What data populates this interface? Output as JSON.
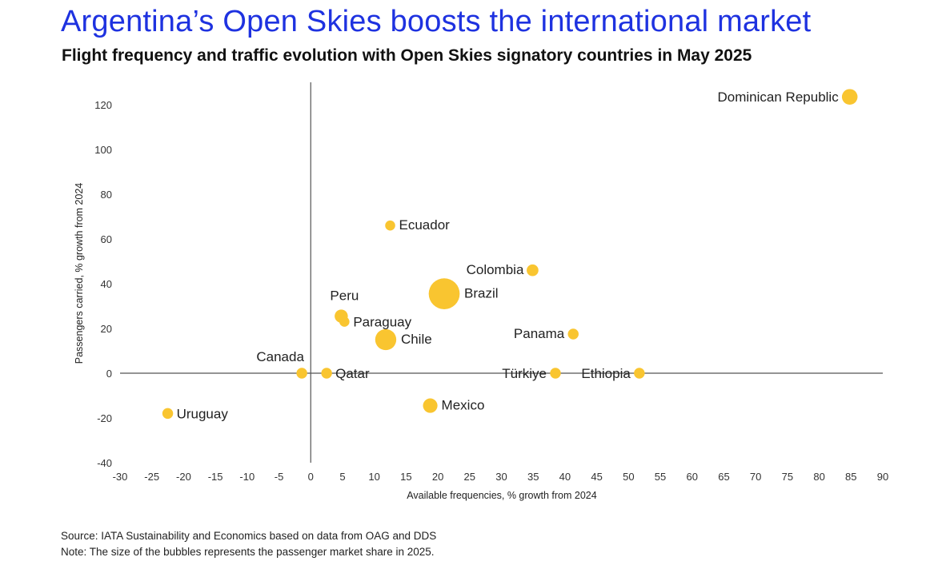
{
  "header": {
    "title": "Argentina’s Open Skies boosts the international market",
    "subtitle": "Flight frequency and traffic evolution with Open Skies signatory countries in May 2025"
  },
  "footer": {
    "source": "Source: IATA Sustainability and Economics based on data from OAG and DDS",
    "note": "Note: The size of the bubbles represents the passenger market share in 2025."
  },
  "chart_data": {
    "type": "scatter",
    "subtype": "bubble",
    "title": "Argentina’s Open Skies boosts the international market",
    "subtitle": "Flight frequency and traffic evolution with Open Skies signatory countries in May 2025",
    "xlabel": "Available frequencies, % growth from 2024",
    "ylabel": "Passengers carried, % growth from 2024",
    "xlim": [
      -30,
      90
    ],
    "ylim": [
      -40,
      120
    ],
    "xticks": [
      -30,
      -25,
      -20,
      -15,
      -10,
      -5,
      0,
      5,
      10,
      15,
      20,
      25,
      30,
      35,
      40,
      45,
      50,
      55,
      60,
      65,
      70,
      75,
      80,
      85,
      90
    ],
    "yticks": [
      -40,
      -20,
      0,
      20,
      40,
      60,
      80,
      100,
      120
    ],
    "grid": false,
    "bubble_color": "#f9c530",
    "axis_color": "#555555",
    "points": [
      {
        "label": "Dominican Republic",
        "x": 84.8,
        "y": 123.5,
        "share": 3
      },
      {
        "label": "Ecuador",
        "x": 12.5,
        "y": 66,
        "share": 1
      },
      {
        "label": "Colombia",
        "x": 34.9,
        "y": 46,
        "share": 1.5
      },
      {
        "label": "Brazil",
        "x": 21,
        "y": 35.5,
        "share": 14
      },
      {
        "label": "Peru",
        "x": 4.8,
        "y": 25.5,
        "share": 2
      },
      {
        "label": "Paraguay",
        "x": 5.3,
        "y": 23,
        "share": 1
      },
      {
        "label": "Panama",
        "x": 41.3,
        "y": 17.5,
        "share": 1.2
      },
      {
        "label": "Chile",
        "x": 11.8,
        "y": 15,
        "share": 6
      },
      {
        "label": "Canada",
        "x": -1.4,
        "y": 0,
        "share": 1.2
      },
      {
        "label": "Qatar",
        "x": 2.5,
        "y": 0,
        "share": 1.2
      },
      {
        "label": "Türkiye",
        "x": 38.5,
        "y": 0,
        "share": 1.2
      },
      {
        "label": "Ethiopia",
        "x": 51.7,
        "y": 0,
        "share": 1.2
      },
      {
        "label": "Uruguay",
        "x": -22.5,
        "y": -18,
        "share": 1.2
      },
      {
        "label": "Mexico",
        "x": 18.8,
        "y": -14.5,
        "share": 2.5
      }
    ]
  }
}
